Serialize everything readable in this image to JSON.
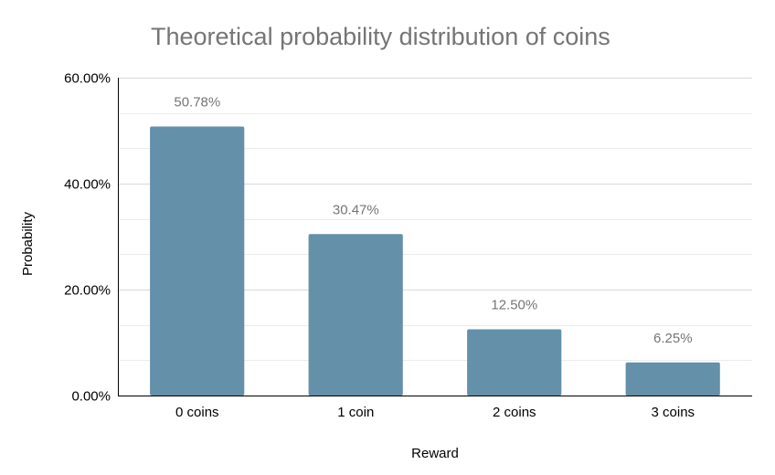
{
  "chart_data": {
    "type": "bar",
    "title": "Theoretical probability distribution of coins",
    "xlabel": "Reward",
    "ylabel": "Probability",
    "categories": [
      "0 coins",
      "1 coin",
      "2 coins",
      "3 coins"
    ],
    "values": [
      50.78,
      30.47,
      12.5,
      6.25
    ],
    "data_labels": [
      "50.78%",
      "30.47%",
      "12.50%",
      "6.25%"
    ],
    "ylim": [
      0,
      60
    ],
    "y_ticks": [
      0,
      20,
      40,
      60
    ],
    "y_tick_labels": [
      "0.00%",
      "20.00%",
      "40.00%",
      "60.00%"
    ],
    "minor_gridline_step": 6.6667,
    "grid": true,
    "legend": "none",
    "colors": {
      "bar": "#6490aa",
      "title": "#757575",
      "data_label": "#757575",
      "axis_text": "#000000",
      "gridline": "#d9d9d9",
      "axis_line": "#000000"
    }
  }
}
